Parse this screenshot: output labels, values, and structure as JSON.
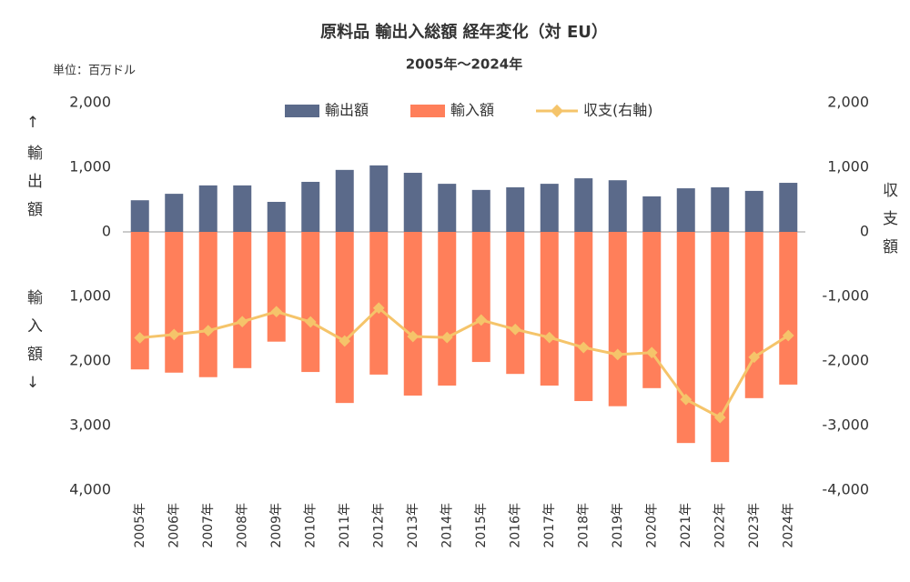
{
  "chart_data": {
    "type": "bar",
    "title": "原料品 輸出入総額 経年変化（対 EU）",
    "subtitle": "2005年～2024年",
    "unit_label": "単位：百万ドル",
    "y_label_top": "↑輸出額",
    "y_label_bottom": "輸入額↓",
    "y2_label": "収支額",
    "categories": [
      "2005年",
      "2006年",
      "2007年",
      "2008年",
      "2009年",
      "2010年",
      "2011年",
      "2012年",
      "2013年",
      "2014年",
      "2015年",
      "2016年",
      "2017年",
      "2018年",
      "2019年",
      "2020年",
      "2021年",
      "2022年",
      "2023年",
      "2024年"
    ],
    "series": [
      {
        "name": "輸出額",
        "color": "#5b6a8a",
        "type": "bar",
        "values": [
          490,
          590,
          720,
          720,
          465,
          775,
          960,
          1030,
          915,
          745,
          650,
          690,
          745,
          830,
          800,
          550,
          675,
          690,
          635,
          760
        ]
      },
      {
        "name": "輸入額",
        "color": "#ff7f5a",
        "type": "bar",
        "values": [
          -2130,
          -2180,
          -2250,
          -2110,
          -1700,
          -2170,
          -2650,
          -2210,
          -2535,
          -2380,
          -2015,
          -2200,
          -2380,
          -2620,
          -2700,
          -2420,
          -3270,
          -3565,
          -2575,
          -2365
        ]
      },
      {
        "name": "収支(右軸)",
        "color": "#f5c46a",
        "type": "line",
        "axis": "y2",
        "values": [
          -1640,
          -1590,
          -1530,
          -1390,
          -1235,
          -1395,
          -1690,
          -1180,
          -1620,
          -1635,
          -1365,
          -1510,
          -1635,
          -1790,
          -1900,
          -1870,
          -2595,
          -2875,
          -1940,
          -1605
        ]
      }
    ],
    "ylim": [
      -4000,
      2000
    ],
    "yticks": [
      {
        "value": 2000,
        "label": "2,000"
      },
      {
        "value": 1000,
        "label": "1,000"
      },
      0,
      {
        "value": -1000,
        "label": "1,000"
      },
      {
        "value": -2000,
        "label": "2,000"
      },
      {
        "value": -3000,
        "label": "3,000"
      },
      {
        "value": -4000,
        "label": "4,000"
      }
    ],
    "y2lim": [
      -4000,
      2000
    ],
    "y2ticks": [
      {
        "value": 2000,
        "label": "2,000"
      },
      {
        "value": 1000,
        "label": "1,000"
      },
      0,
      {
        "value": -1000,
        "label": "-1,000"
      },
      {
        "value": -2000,
        "label": "-2,000"
      },
      {
        "value": -3000,
        "label": "-3,000"
      },
      {
        "value": -4000,
        "label": "-4,000"
      }
    ],
    "tick_color": "#777777",
    "negative_tick_color": "#e8151b",
    "legend": "top",
    "grid": false
  }
}
